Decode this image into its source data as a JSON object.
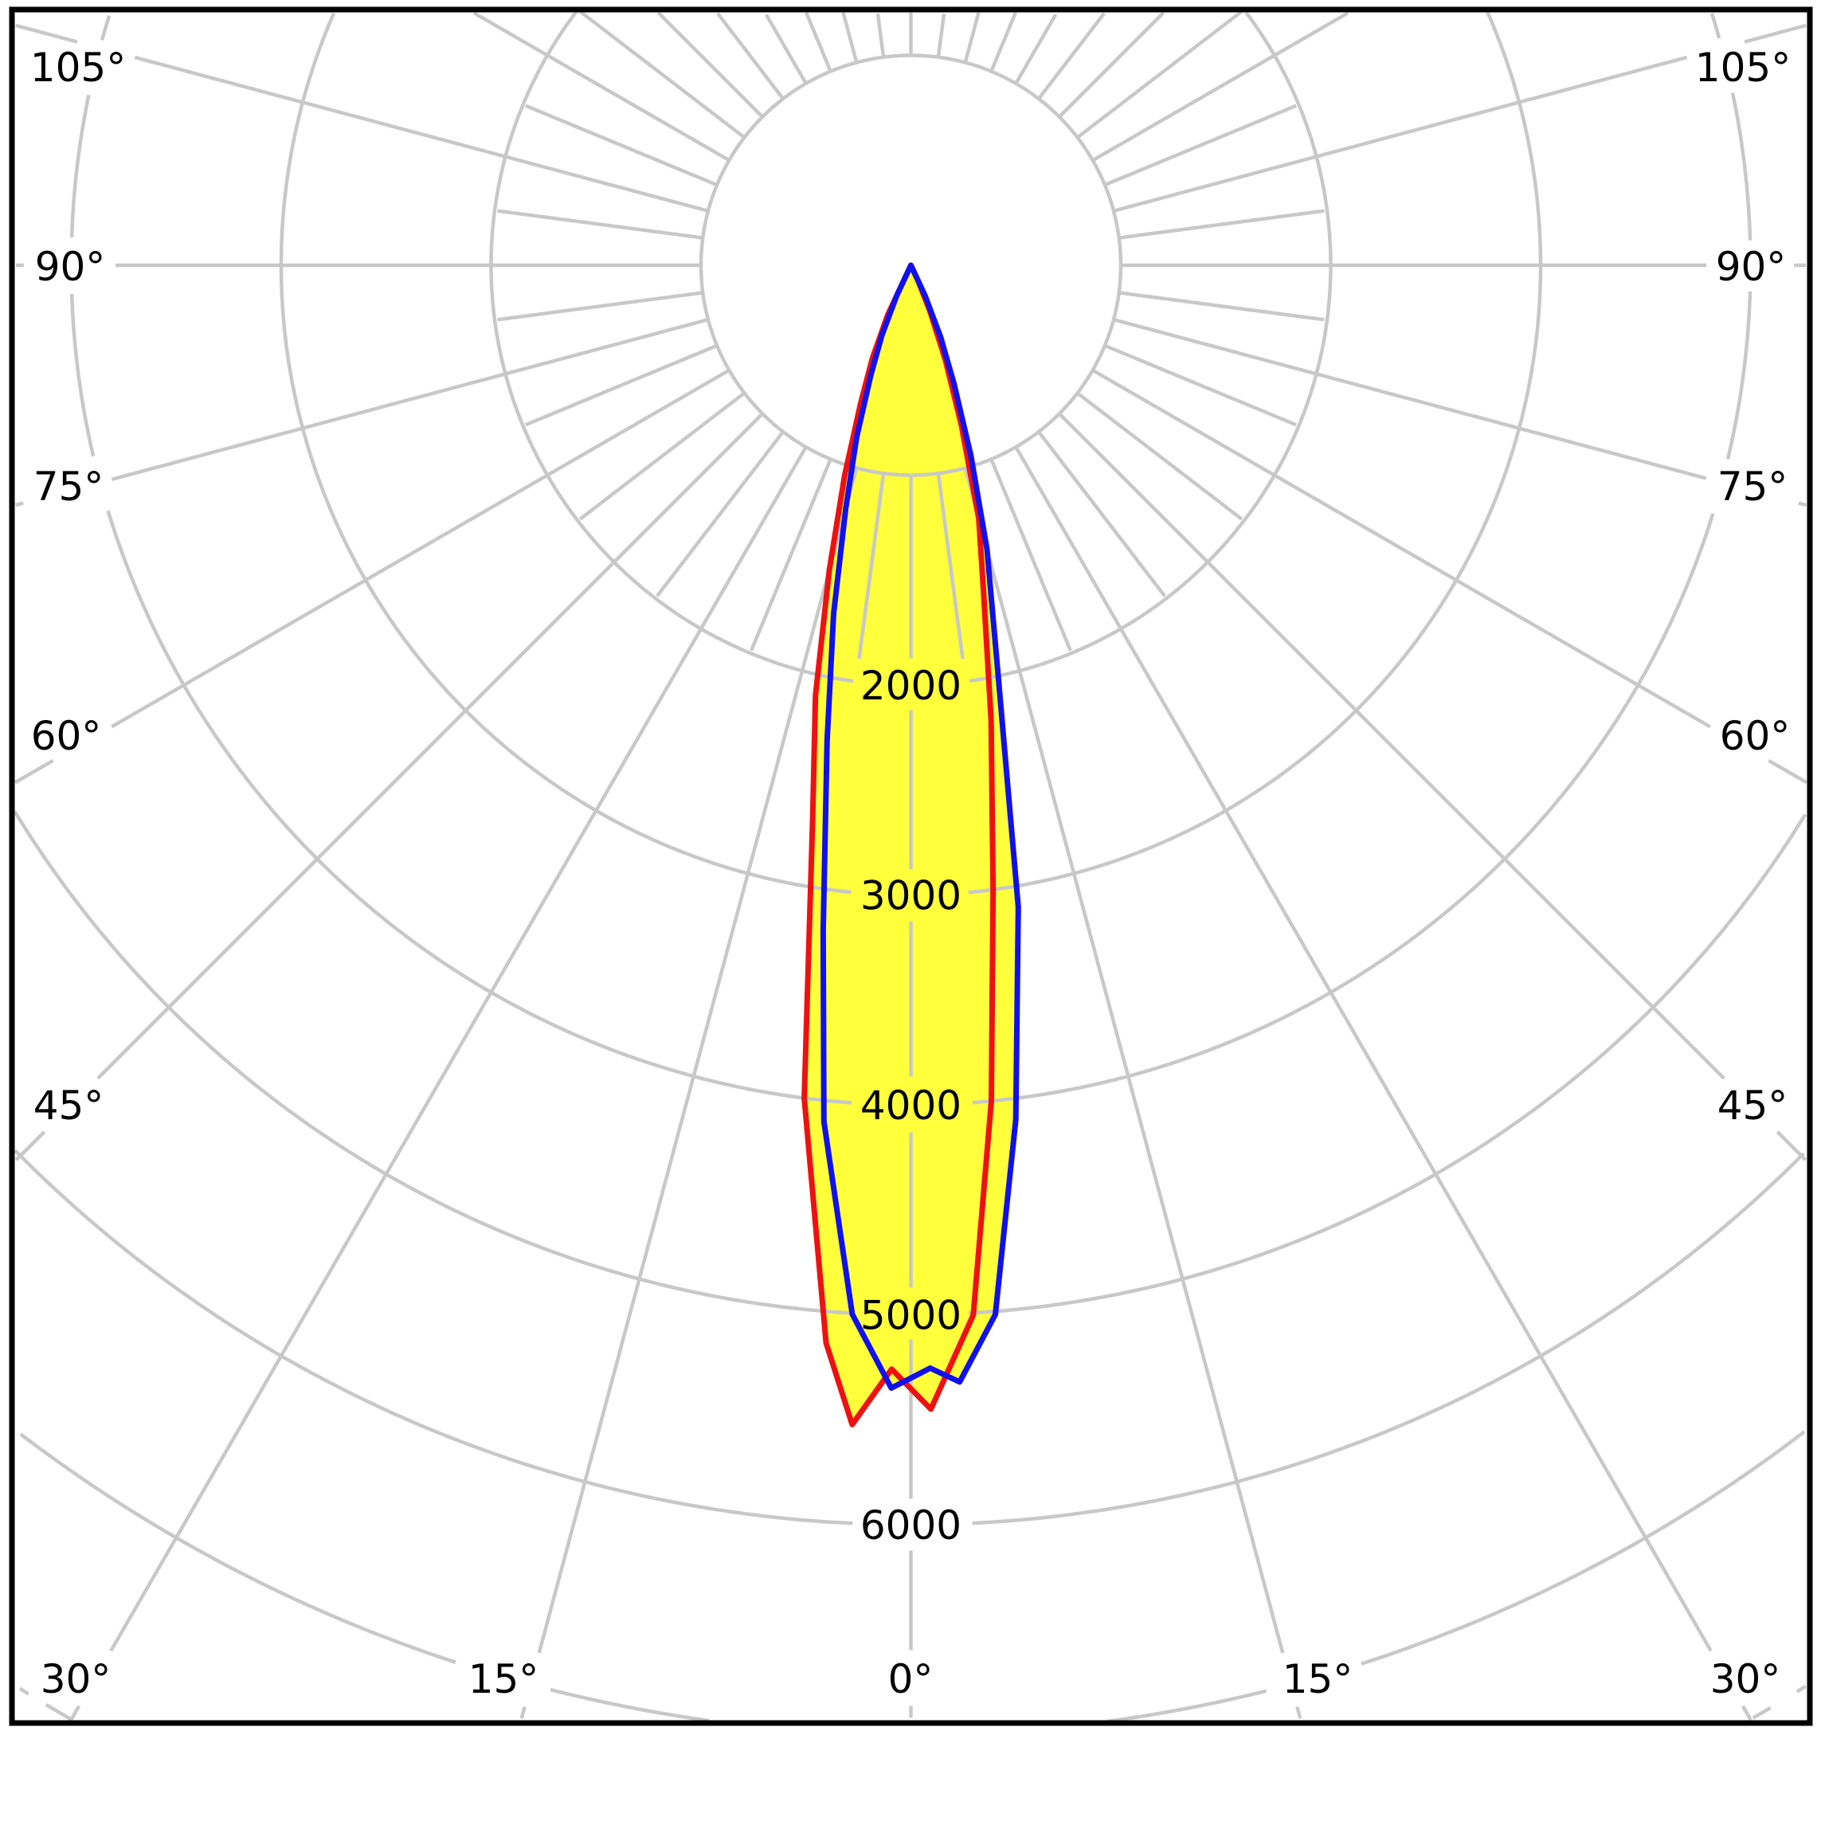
{
  "chart_data": {
    "type": "line",
    "projection": "polar",
    "description": "Photometric polar luminous intensity distribution diagram, 0 degrees at nadir (straight down), two C-plane curves with filled union",
    "radial_axis": {
      "tick_labels": [
        "2000",
        "3000",
        "4000",
        "5000",
        "6000"
      ],
      "tick_values": [
        2000,
        3000,
        4000,
        5000,
        6000
      ],
      "ring_values": [
        1000,
        2000,
        3000,
        4000,
        5000,
        6000,
        7000,
        8000
      ],
      "units_per_ring": 1000
    },
    "angle_axis": {
      "major_step_deg": 15,
      "minor_step_deg": 7.5,
      "bottom_labels": [
        {
          "text": "30°",
          "angle": -30
        },
        {
          "text": "15°",
          "angle": -15
        },
        {
          "text": "0°",
          "angle": 0
        },
        {
          "text": "15°",
          "angle": 15
        },
        {
          "text": "30°",
          "angle": 30
        }
      ],
      "left_labels": [
        {
          "text": "45°",
          "angle": 45
        },
        {
          "text": "60°",
          "angle": 60
        },
        {
          "text": "75°",
          "angle": 75
        },
        {
          "text": "90°",
          "angle": 90
        },
        {
          "text": "105°",
          "angle": 105
        }
      ],
      "right_labels": [
        {
          "text": "45°",
          "angle": 45
        },
        {
          "text": "60°",
          "angle": 60
        },
        {
          "text": "75°",
          "angle": 75
        },
        {
          "text": "90°",
          "angle": 90
        },
        {
          "text": "105°",
          "angle": 105
        }
      ]
    },
    "series": [
      {
        "name": "red-curve",
        "color": "#ee1111",
        "points": [
          [
            -28,
            0
          ],
          [
            -25,
            260
          ],
          [
            -22.5,
            480
          ],
          [
            -20,
            700
          ],
          [
            -17.5,
            1050
          ],
          [
            -15,
            1500
          ],
          [
            -12.5,
            2100
          ],
          [
            -10,
            2700
          ],
          [
            -7.3,
            4000
          ],
          [
            -4.5,
            5150
          ],
          [
            -2.9,
            5530
          ],
          [
            -1,
            5260
          ],
          [
            1,
            5450
          ],
          [
            3.4,
            5010
          ],
          [
            5.5,
            4000
          ],
          [
            7.5,
            3000
          ],
          [
            10,
            2200
          ],
          [
            12.5,
            1600
          ],
          [
            15,
            1250
          ],
          [
            17.5,
            800
          ],
          [
            20,
            480
          ],
          [
            22.5,
            240
          ],
          [
            25,
            80
          ],
          [
            27,
            0
          ]
        ]
      },
      {
        "name": "blue-curve",
        "color": "#1111ee",
        "points": [
          [
            -27,
            0
          ],
          [
            -25,
            160
          ],
          [
            -22.5,
            360
          ],
          [
            -20,
            560
          ],
          [
            -17.5,
            860
          ],
          [
            -15,
            1200
          ],
          [
            -12.5,
            1700
          ],
          [
            -10,
            2300
          ],
          [
            -7.5,
            3200
          ],
          [
            -5.8,
            4100
          ],
          [
            -3.2,
            5005
          ],
          [
            -1,
            5350
          ],
          [
            1,
            5255
          ],
          [
            2.5,
            5325
          ],
          [
            4.6,
            5015
          ],
          [
            7,
            4100
          ],
          [
            9.5,
            3100
          ],
          [
            12,
            2000
          ],
          [
            15,
            1400
          ],
          [
            17.5,
            950
          ],
          [
            20,
            600
          ],
          [
            22.5,
            370
          ],
          [
            25,
            160
          ],
          [
            27.5,
            0
          ]
        ]
      }
    ],
    "fill": {
      "color": "#ffff3b",
      "rule": "union-of-series"
    }
  },
  "style": {
    "background": "#ffffff",
    "grid_color": "#c8c8c8",
    "border_color": "#000000",
    "text_color": "#000000"
  }
}
